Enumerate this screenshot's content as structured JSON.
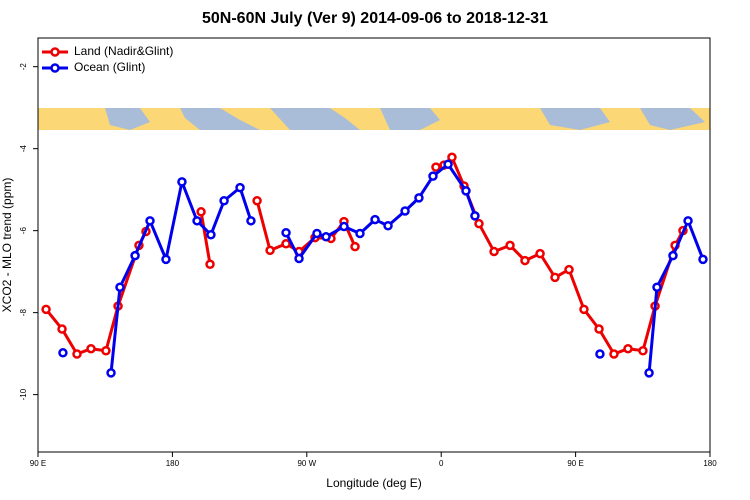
{
  "chart_data": {
    "type": "line",
    "title": "50N-60N July (Ver 9)   2014-09-06 to 2018-12-31",
    "x_label": "Longitude (deg E)",
    "y_label": "XCO2 - MLO trend (ppm)",
    "xlim": [
      90,
      540
    ],
    "ylim": [
      -11.4,
      -1.3
    ],
    "xticks": [
      {
        "value": 90,
        "label": "90 E"
      },
      180,
      {
        "value": 270,
        "label": "90 W"
      },
      {
        "value": 360,
        "label": "0"
      },
      {
        "value": 450,
        "label": "90 E"
      },
      {
        "value": 540,
        "label": "180"
      }
    ],
    "yticks": [
      -2,
      -4,
      -6,
      -8,
      -10
    ],
    "grid": false,
    "legend": "top-left",
    "series": [
      {
        "name": "Land (Nadir&Glint)",
        "color": "#ee0000",
        "x": [
          95.4,
          106.1,
          116.1,
          125.5,
          135.5,
          143.6,
          157.6,
          162.3,
          null,
          199.2,
          205.2,
          null,
          236.7,
          245.4,
          256.1,
          264.8,
          275.5,
          286.2,
          294.9,
          302.3,
          null,
          356.5,
          361.9,
          367.2,
          375.3,
          385.3,
          395.4,
          406.1,
          416.1,
          426.2,
          436.2,
          445.6,
          455.6,
          465.7,
          475.7,
          485.1,
          495.1,
          503.2,
          516.6,
          521.9
        ],
        "values": [
          -7.92,
          -8.4,
          -9.01,
          -8.88,
          -8.93,
          -7.84,
          -6.36,
          -6.02,
          null,
          -5.54,
          -6.82,
          null,
          -5.27,
          -6.48,
          -6.32,
          -6.51,
          -6.17,
          -6.19,
          -5.78,
          -6.39,
          null,
          -4.45,
          -4.4,
          -4.21,
          -4.91,
          -5.83,
          -6.51,
          -6.36,
          -6.73,
          -6.56,
          -7.14,
          -6.95,
          -7.92,
          -8.4,
          -9.01,
          -8.88,
          -8.93,
          -7.84,
          -6.36,
          -6.0
        ]
      },
      {
        "name": "Ocean (Glint)",
        "color": "#0000ee",
        "x": [
          106.7,
          null,
          138.9,
          144.9,
          155,
          165,
          175.7,
          186.4,
          196.5,
          205.8,
          214.6,
          225.3,
          232.6,
          null,
          256.1,
          264.8,
          276.8,
          282.9,
          294.9,
          305.6,
          315.7,
          324.4,
          335.8,
          345.1,
          354.5,
          364.6,
          376.6,
          382.6,
          null,
          466.3,
          null,
          499.2,
          504.5,
          515.2,
          525.3,
          535.3
        ],
        "values": [
          -8.98,
          null,
          -9.47,
          -7.38,
          -6.61,
          -5.76,
          -6.7,
          -4.81,
          -5.76,
          -6.1,
          -5.27,
          -4.95,
          -5.76,
          null,
          -6.05,
          -6.68,
          -6.07,
          -6.15,
          -5.9,
          -6.07,
          -5.73,
          -5.88,
          -5.52,
          -5.2,
          -4.67,
          -4.38,
          -5.03,
          -5.64,
          null,
          -9.01,
          null,
          -9.47,
          -7.38,
          -6.61,
          -5.76,
          -6.7
        ]
      }
    ]
  }
}
